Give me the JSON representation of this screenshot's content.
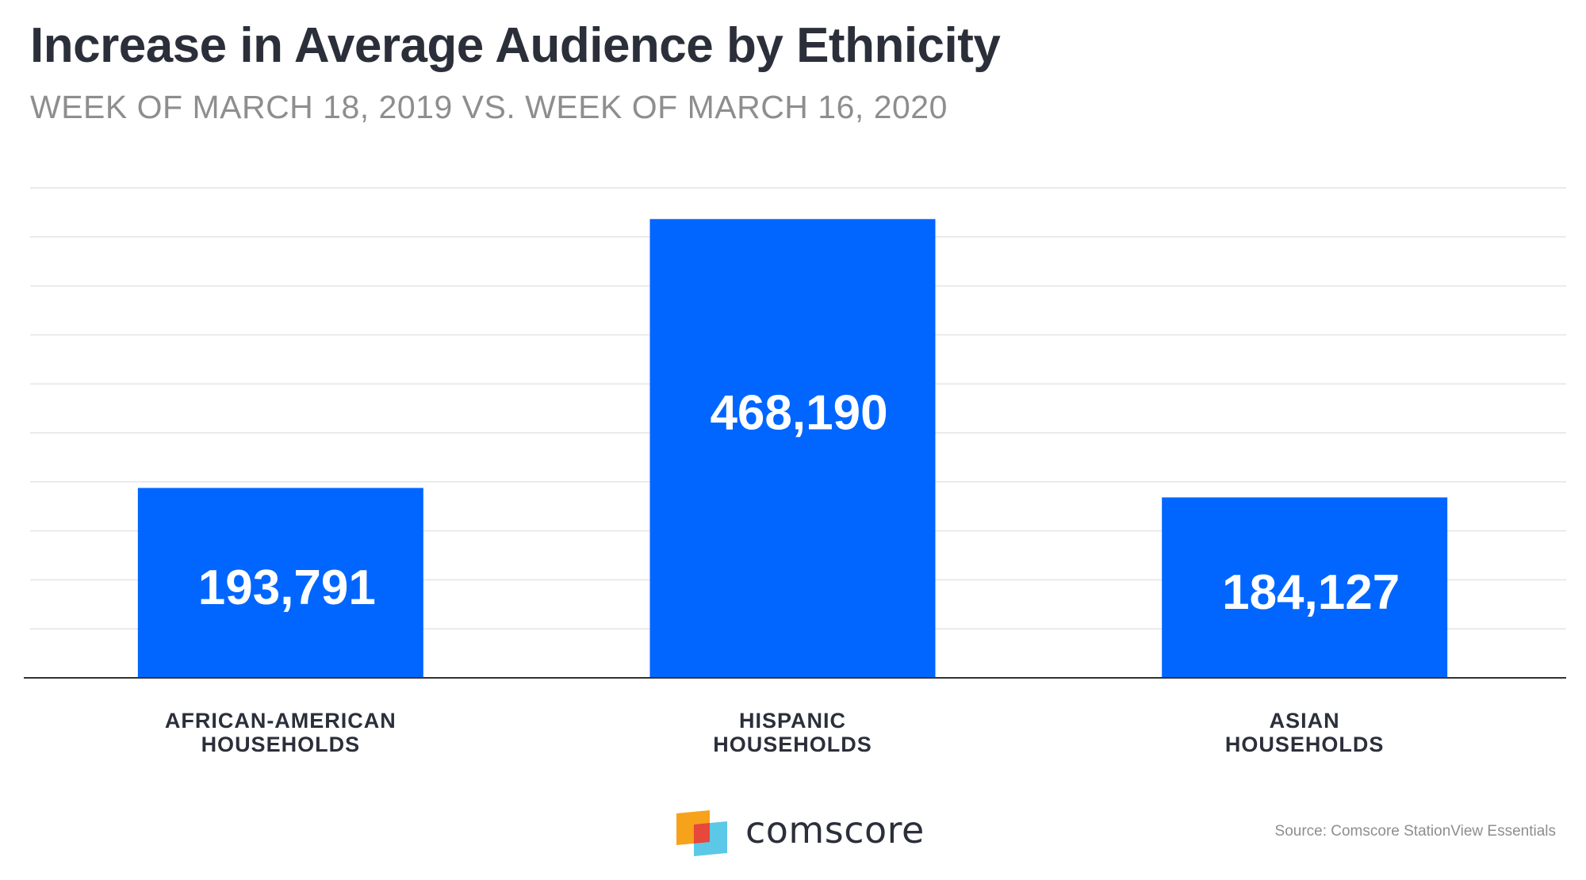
{
  "header": {
    "title": "Increase in Average Audience by Ethnicity",
    "subtitle": "WEEK OF MARCH 18, 2019 VS. WEEK OF MARCH 16, 2020"
  },
  "chart_data": {
    "type": "bar",
    "categories": [
      [
        "AFRICAN-AMERICAN",
        "HOUSEHOLDS"
      ],
      [
        "HISPANIC",
        "HOUSEHOLDS"
      ],
      [
        "ASIAN",
        "HOUSEHOLDS"
      ]
    ],
    "values": [
      193791,
      468190,
      184127
    ],
    "data_labels": [
      "193,791",
      "468,190",
      "184,127"
    ],
    "title": "Increase in Average Audience by Ethnicity",
    "subtitle": "WEEK OF MARCH 18, 2019 VS. WEEK OF MARCH 16, 2020",
    "xlabel": "",
    "ylabel": "",
    "ylim": [
      0,
      500000
    ],
    "grid": true,
    "legend": "none",
    "colors": {
      "bar": "#0066ff",
      "grid": "#e4e4e4",
      "axis": "#333333",
      "label": "#2b2f3a",
      "value_text": "#ffffff"
    }
  },
  "footer": {
    "brand": "comscore",
    "source": "Source: Comscore StationView Essentials"
  }
}
